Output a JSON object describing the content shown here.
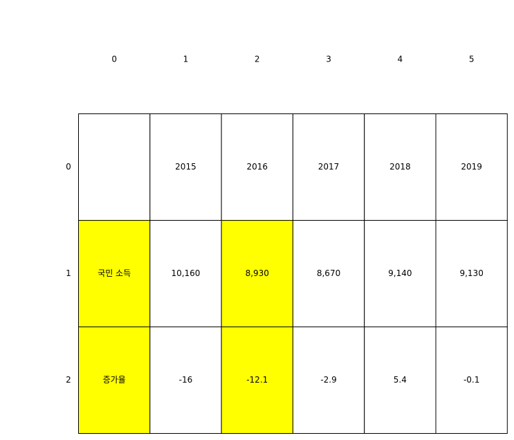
{
  "chart_data": {
    "type": "table",
    "column_headers": [
      "0",
      "1",
      "2",
      "3",
      "4",
      "5"
    ],
    "row_headers": [
      "0",
      "1",
      "2"
    ],
    "cells": [
      [
        "",
        "2015",
        "2016",
        "2017",
        "2018",
        "2019"
      ],
      [
        "국민 소득",
        "10,160",
        "8,930",
        "8,670",
        "9,140",
        "9,130"
      ],
      [
        "증가율",
        "-16",
        "-12.1",
        "-2.9",
        "5.4",
        "-0.1"
      ]
    ],
    "highlighted_cells": [
      [
        1,
        0
      ],
      [
        2,
        0
      ],
      [
        1,
        2
      ],
      [
        2,
        2
      ]
    ],
    "highlight_color": "#ffff00",
    "cell_background": "#ffffff",
    "border_color": "#000000",
    "grid": true
  }
}
